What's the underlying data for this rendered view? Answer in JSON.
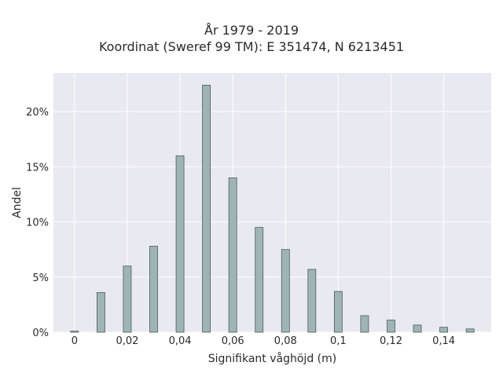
{
  "chart_data": {
    "type": "bar",
    "title_line1": "År 1979 - 2019",
    "title_line2": "Koordinat (Sweref 99 TM): E 351474, N 6213451",
    "xlabel": "Signifikant våghöjd (m)",
    "ylabel": "Andel",
    "x": [
      0,
      0.01,
      0.02,
      0.03,
      0.04,
      0.05,
      0.06,
      0.07,
      0.08,
      0.09,
      0.1,
      0.11,
      0.12,
      0.13,
      0.14,
      0.15
    ],
    "values": [
      0.1,
      3.6,
      6.0,
      7.8,
      16.0,
      22.4,
      14.0,
      9.5,
      7.5,
      5.7,
      3.7,
      1.5,
      1.1,
      0.65,
      0.45,
      0.3
    ],
    "xlim": [
      -0.008,
      0.158
    ],
    "ylim": [
      0,
      23.5
    ],
    "xticks": [
      0,
      0.02,
      0.04,
      0.06,
      0.08,
      0.1,
      0.12,
      0.14
    ],
    "xtick_labels": [
      "0",
      "0,02",
      "0,04",
      "0,06",
      "0,08",
      "0,1",
      "0,12",
      "0,14"
    ],
    "yticks": [
      0,
      5,
      10,
      15,
      20
    ],
    "ytick_labels": [
      "0%",
      "5%",
      "10%",
      "15%",
      "20%"
    ],
    "grid": true,
    "colors": {
      "bar_fill": "#9fb5b5",
      "bar_stroke": "#4a5a5a",
      "plot_bg": "#e9e9f1",
      "grid": "#ffffff"
    }
  }
}
